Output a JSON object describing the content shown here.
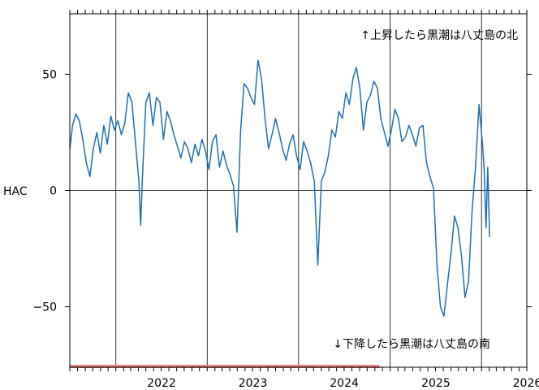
{
  "chart_data": {
    "type": "line",
    "xlabel": "",
    "ylabel": "HAC",
    "ylim": [
      -76,
      76
    ],
    "xlim": [
      "2021-07-01",
      "2026-07-01"
    ],
    "yticks": [
      50,
      0,
      -50
    ],
    "ytick_labels": [
      "50",
      "0",
      "−50"
    ],
    "x_tick_labels": [
      "2022",
      "2023",
      "2024",
      "2025",
      "2026"
    ],
    "x_tick_dates": [
      "2022-01-01",
      "2023-01-01",
      "2024-01-01",
      "2025-01-01",
      "2026-01-01"
    ],
    "year_boundaries": [
      "2022-01-01",
      "2023-01-01",
      "2024-01-01",
      "2025-01-01",
      "2026-01-01"
    ],
    "annotations": {
      "top": "↑上昇したら黒潮は八丈島の北",
      "bottom": "↓下降したら黒潮は八丈島の南"
    },
    "bottom_band": {
      "start": "2021-07-01",
      "end": "2024-11-20",
      "color": "#e88080"
    },
    "colors": {
      "line": "#1f6fb4",
      "grid": "#000000"
    },
    "series": [
      {
        "values": [
          [
            "2021-07-01",
            18
          ],
          [
            "2021-07-12",
            28
          ],
          [
            "2021-07-25",
            33
          ],
          [
            "2021-08-08",
            30
          ],
          [
            "2021-08-22",
            22
          ],
          [
            "2021-09-05",
            12
          ],
          [
            "2021-09-19",
            6
          ],
          [
            "2021-10-03",
            18
          ],
          [
            "2021-10-17",
            25
          ],
          [
            "2021-10-31",
            16
          ],
          [
            "2021-11-14",
            28
          ],
          [
            "2021-11-28",
            20
          ],
          [
            "2021-12-12",
            32
          ],
          [
            "2021-12-26",
            26
          ],
          [
            "2022-01-09",
            30
          ],
          [
            "2022-01-23",
            24
          ],
          [
            "2022-02-06",
            29
          ],
          [
            "2022-02-20",
            42
          ],
          [
            "2022-03-06",
            38
          ],
          [
            "2022-03-20",
            21
          ],
          [
            "2022-04-03",
            4
          ],
          [
            "2022-04-10",
            -15
          ],
          [
            "2022-04-17",
            5
          ],
          [
            "2022-05-01",
            38
          ],
          [
            "2022-05-15",
            42
          ],
          [
            "2022-05-29",
            28
          ],
          [
            "2022-06-12",
            40
          ],
          [
            "2022-06-26",
            38
          ],
          [
            "2022-07-10",
            22
          ],
          [
            "2022-07-24",
            34
          ],
          [
            "2022-08-07",
            30
          ],
          [
            "2022-08-21",
            24
          ],
          [
            "2022-09-04",
            19
          ],
          [
            "2022-09-18",
            14
          ],
          [
            "2022-10-02",
            21
          ],
          [
            "2022-10-16",
            18
          ],
          [
            "2022-10-30",
            12
          ],
          [
            "2022-11-13",
            20
          ],
          [
            "2022-11-27",
            15
          ],
          [
            "2022-12-11",
            22
          ],
          [
            "2022-12-25",
            17
          ],
          [
            "2023-01-08",
            9
          ],
          [
            "2023-01-22",
            21
          ],
          [
            "2023-02-05",
            24
          ],
          [
            "2023-02-19",
            10
          ],
          [
            "2023-03-05",
            17
          ],
          [
            "2023-03-19",
            11
          ],
          [
            "2023-04-02",
            7
          ],
          [
            "2023-04-16",
            2
          ],
          [
            "2023-04-30",
            -18
          ],
          [
            "2023-05-14",
            25
          ],
          [
            "2023-05-28",
            46
          ],
          [
            "2023-06-11",
            44
          ],
          [
            "2023-06-25",
            40
          ],
          [
            "2023-07-09",
            37
          ],
          [
            "2023-07-23",
            56
          ],
          [
            "2023-08-06",
            48
          ],
          [
            "2023-08-20",
            31
          ],
          [
            "2023-09-03",
            18
          ],
          [
            "2023-09-17",
            24
          ],
          [
            "2023-10-01",
            31
          ],
          [
            "2023-10-15",
            25
          ],
          [
            "2023-10-29",
            18
          ],
          [
            "2023-11-12",
            13
          ],
          [
            "2023-11-26",
            20
          ],
          [
            "2023-12-10",
            24
          ],
          [
            "2023-12-24",
            15
          ],
          [
            "2024-01-07",
            9
          ],
          [
            "2024-01-21",
            21
          ],
          [
            "2024-02-04",
            17
          ],
          [
            "2024-02-18",
            12
          ],
          [
            "2024-03-04",
            4
          ],
          [
            "2024-03-18",
            -32
          ],
          [
            "2024-04-01",
            4
          ],
          [
            "2024-04-15",
            8
          ],
          [
            "2024-04-29",
            15
          ],
          [
            "2024-05-13",
            26
          ],
          [
            "2024-05-27",
            23
          ],
          [
            "2024-06-10",
            34
          ],
          [
            "2024-06-24",
            31
          ],
          [
            "2024-07-08",
            42
          ],
          [
            "2024-07-22",
            37
          ],
          [
            "2024-08-05",
            48
          ],
          [
            "2024-08-19",
            53
          ],
          [
            "2024-09-02",
            44
          ],
          [
            "2024-09-16",
            26
          ],
          [
            "2024-09-30",
            38
          ],
          [
            "2024-10-14",
            41
          ],
          [
            "2024-10-28",
            47
          ],
          [
            "2024-11-11",
            44
          ],
          [
            "2024-11-25",
            31
          ],
          [
            "2024-12-09",
            25
          ],
          [
            "2024-12-23",
            19
          ],
          [
            "2025-01-06",
            26
          ],
          [
            "2025-01-20",
            35
          ],
          [
            "2025-02-03",
            31
          ],
          [
            "2025-02-17",
            21
          ],
          [
            "2025-03-03",
            23
          ],
          [
            "2025-03-17",
            28
          ],
          [
            "2025-03-31",
            24
          ],
          [
            "2025-04-14",
            19
          ],
          [
            "2025-04-28",
            27
          ],
          [
            "2025-05-12",
            28
          ],
          [
            "2025-05-26",
            12
          ],
          [
            "2025-06-09",
            6
          ],
          [
            "2025-06-23",
            1
          ],
          [
            "2025-07-07",
            -32
          ],
          [
            "2025-07-21",
            -50
          ],
          [
            "2025-08-04",
            -54
          ],
          [
            "2025-08-18",
            -40
          ],
          [
            "2025-09-01",
            -27
          ],
          [
            "2025-09-15",
            -11
          ],
          [
            "2025-09-29",
            -16
          ],
          [
            "2025-10-13",
            -28
          ],
          [
            "2025-10-27",
            -46
          ],
          [
            "2025-11-10",
            -39
          ],
          [
            "2025-11-24",
            -9
          ],
          [
            "2025-12-08",
            10
          ],
          [
            "2025-12-22",
            37
          ],
          [
            "2026-01-05",
            20
          ],
          [
            "2026-01-12",
            8
          ],
          [
            "2026-01-19",
            -16
          ],
          [
            "2026-01-26",
            10
          ],
          [
            "2026-02-02",
            -20
          ]
        ]
      }
    ]
  }
}
